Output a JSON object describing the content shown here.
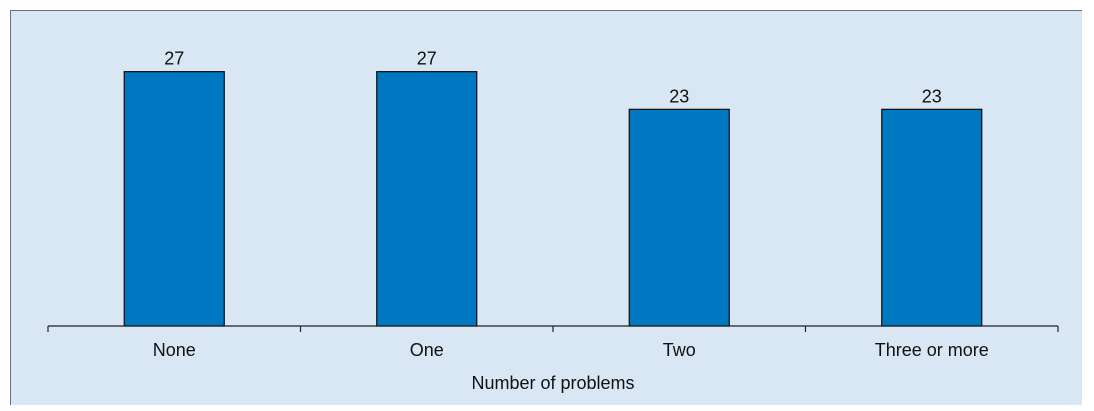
{
  "chart_data": {
    "type": "bar",
    "categories": [
      "None",
      "One",
      "Two",
      "Three or more"
    ],
    "values": [
      27,
      27,
      23,
      23
    ],
    "data_labels": [
      "27",
      "27",
      "23",
      "23"
    ],
    "title": "",
    "xlabel": "Number of problems",
    "ylabel": "",
    "ylim": [
      0,
      30
    ],
    "grid": false,
    "legend": "none",
    "colors": {
      "bar": "#0078c1",
      "bar_outline": "#0a0a0a",
      "background": "#d9e6f4",
      "axis": "#222222"
    }
  }
}
